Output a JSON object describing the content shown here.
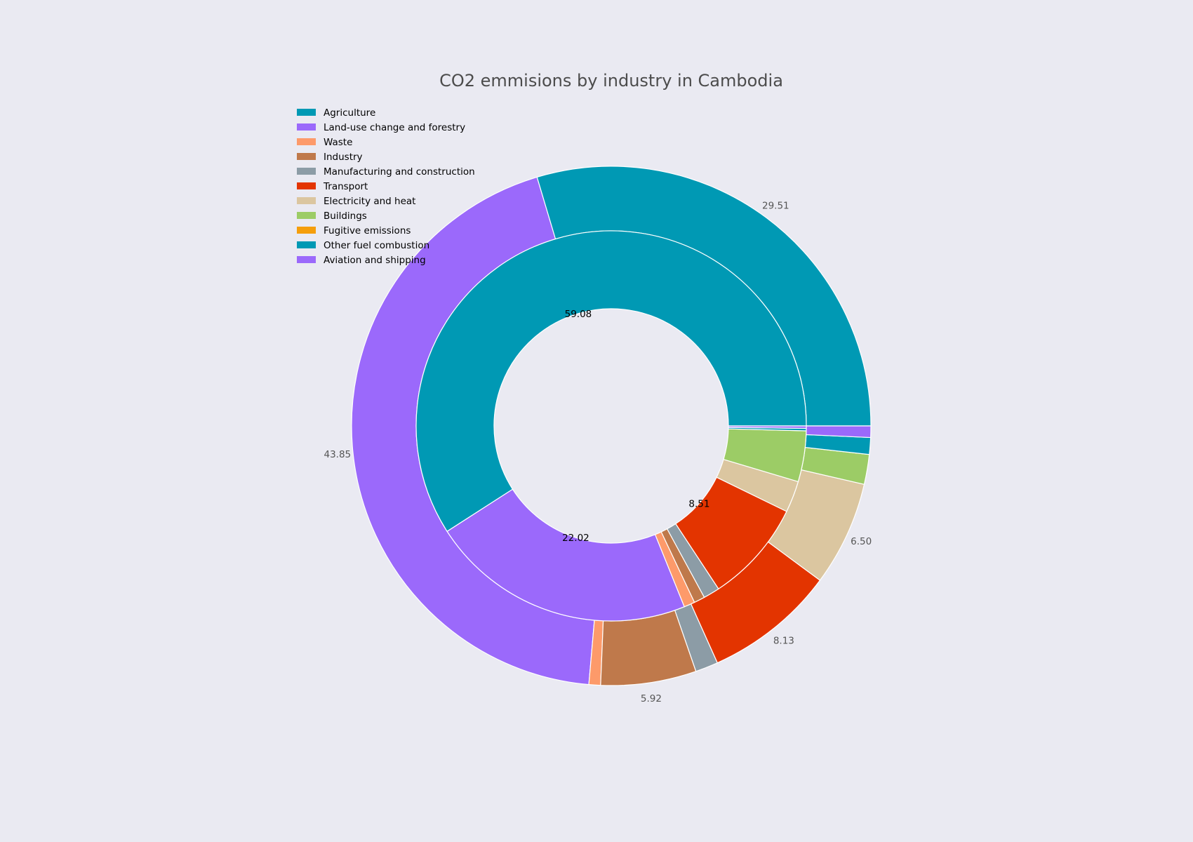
{
  "chart_data": {
    "type": "pie",
    "style": "nested donut",
    "title": "CO2 emmisions by industry in Cambodia",
    "legend_placement": "top-left",
    "legend": [
      {
        "label": "Agriculture",
        "color": "#0099b4"
      },
      {
        "label": "Land-use change and forestry",
        "color": "#9b69fb"
      },
      {
        "label": "Waste",
        "color": "#fd9a6a"
      },
      {
        "label": "Industry",
        "color": "#bf794b"
      },
      {
        "label": "Manufacturing and construction",
        "color": "#8c9ca6"
      },
      {
        "label": "Transport",
        "color": "#e33400"
      },
      {
        "label": "Electricity and heat",
        "color": "#dbc6a0"
      },
      {
        "label": "Buildings",
        "color": "#9ccc66"
      },
      {
        "label": "Fugitive emissions",
        "color": "#f59e0b"
      },
      {
        "label": "Other fuel combustion",
        "color": "#0099b4"
      },
      {
        "label": "Aviation and shipping",
        "color": "#9b69fb"
      }
    ],
    "outer_ring": [
      {
        "category": "Agriculture",
        "value": 29.51,
        "color": "#0099b4",
        "label": "29.51"
      },
      {
        "category": "Land-use change and forestry",
        "value": 43.85,
        "color": "#9b69fb",
        "label": "43.85"
      },
      {
        "category": "Waste",
        "value": 0.72,
        "color": "#fd9a6a",
        "label": ""
      },
      {
        "category": "Industry",
        "value": 5.92,
        "color": "#bf794b",
        "label": "5.92"
      },
      {
        "category": "Manufacturing and construction",
        "value": 1.41,
        "color": "#8c9ca6",
        "label": ""
      },
      {
        "category": "Transport",
        "value": 8.13,
        "color": "#e33400",
        "label": "8.13"
      },
      {
        "category": "Electricity and heat",
        "value": 6.5,
        "color": "#dbc6a0",
        "label": "6.50"
      },
      {
        "category": "Buildings",
        "value": 1.85,
        "color": "#9ccc66",
        "label": ""
      },
      {
        "category": "Fugitive emissions",
        "value": 0.0,
        "color": "#f59e0b",
        "label": ""
      },
      {
        "category": "Other fuel combustion",
        "value": 1.04,
        "color": "#0099b4",
        "label": ""
      },
      {
        "category": "Aviation and shipping",
        "value": 0.71,
        "color": "#9b69fb",
        "label": ""
      }
    ],
    "inner_ring": [
      {
        "category": "Agriculture",
        "value": 59.08,
        "color": "#0099b4",
        "label": "59.08"
      },
      {
        "category": "Land-use change and forestry",
        "value": 22.02,
        "color": "#9b69fb",
        "label": "22.02"
      },
      {
        "category": "Waste",
        "value": 0.9,
        "color": "#fd9a6a",
        "label": ""
      },
      {
        "category": "Industry",
        "value": 0.9,
        "color": "#bf794b",
        "label": ""
      },
      {
        "category": "Manufacturing and construction",
        "value": 1.35,
        "color": "#8c9ca6",
        "label": ""
      },
      {
        "category": "Transport",
        "value": 8.51,
        "color": "#e33400",
        "label": "8.51"
      },
      {
        "category": "Electricity and heat",
        "value": 2.61,
        "color": "#dbc6a0",
        "label": ""
      },
      {
        "category": "Buildings",
        "value": 4.21,
        "color": "#9ccc66",
        "label": ""
      },
      {
        "category": "Fugitive emissions",
        "value": 0.0,
        "color": "#f59e0b",
        "label": ""
      },
      {
        "category": "Other fuel combustion",
        "value": 0.2,
        "color": "#0099b4",
        "label": ""
      },
      {
        "category": "Aviation and shipping",
        "value": 0.2,
        "color": "#9b69fb",
        "label": ""
      }
    ]
  }
}
